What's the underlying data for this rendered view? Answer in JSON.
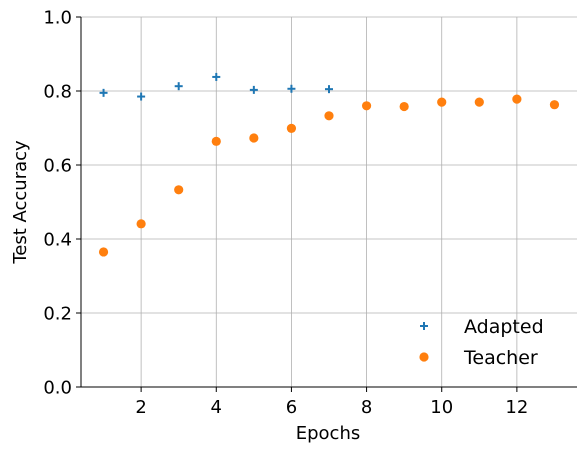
{
  "chart_data": {
    "type": "scatter",
    "xlabel": "Epochs",
    "ylabel": "Test Accuracy",
    "xlim": [
      0.4,
      13.6
    ],
    "ylim": [
      0.0,
      1.0
    ],
    "xticks": [
      2,
      4,
      6,
      8,
      10,
      12
    ],
    "yticks": [
      0.0,
      0.2,
      0.4,
      0.6,
      0.8,
      1.0
    ],
    "grid": true,
    "legend_position": "bottom-right",
    "series": [
      {
        "name": "Adapted",
        "marker": "plus",
        "color": "#1f77b4",
        "x": [
          1,
          2,
          3,
          4,
          5,
          6,
          7
        ],
        "y": [
          0.795,
          0.785,
          0.813,
          0.838,
          0.803,
          0.806,
          0.805
        ]
      },
      {
        "name": "Teacher",
        "marker": "circle",
        "color": "#ff7f0e",
        "x": [
          1,
          2,
          3,
          4,
          5,
          6,
          7,
          8,
          9,
          10,
          11,
          12,
          13
        ],
        "y": [
          0.365,
          0.441,
          0.533,
          0.664,
          0.673,
          0.699,
          0.733,
          0.76,
          0.758,
          0.77,
          0.77,
          0.778,
          0.763
        ]
      }
    ]
  }
}
